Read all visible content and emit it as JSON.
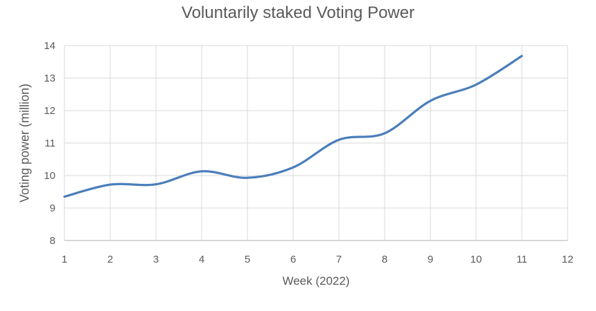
{
  "chart_data": {
    "type": "line",
    "title": "Voluntarily staked Voting Power",
    "xlabel": "Week (2022)",
    "ylabel": "Voting power (million)",
    "x": [
      1,
      2,
      3,
      4,
      5,
      6,
      7,
      8,
      9,
      10,
      11
    ],
    "series": [
      {
        "name": "Voluntarily staked voting power",
        "values": [
          9.35,
          9.72,
          9.73,
          10.13,
          9.93,
          10.25,
          11.1,
          11.3,
          12.3,
          12.8,
          13.68
        ]
      }
    ],
    "xlim": [
      1,
      12
    ],
    "ylim": [
      8,
      14
    ],
    "x_ticks": [
      1,
      2,
      3,
      4,
      5,
      6,
      7,
      8,
      9,
      10,
      11,
      12
    ],
    "y_ticks": [
      8,
      9,
      10,
      11,
      12,
      13,
      14
    ],
    "grid": true,
    "legend": "none",
    "smooth": true,
    "colors": {
      "line": "#4a7ebb",
      "gridline": "#d9d9d9",
      "axis_line": "#bfbfbf",
      "text": "#595959"
    }
  }
}
